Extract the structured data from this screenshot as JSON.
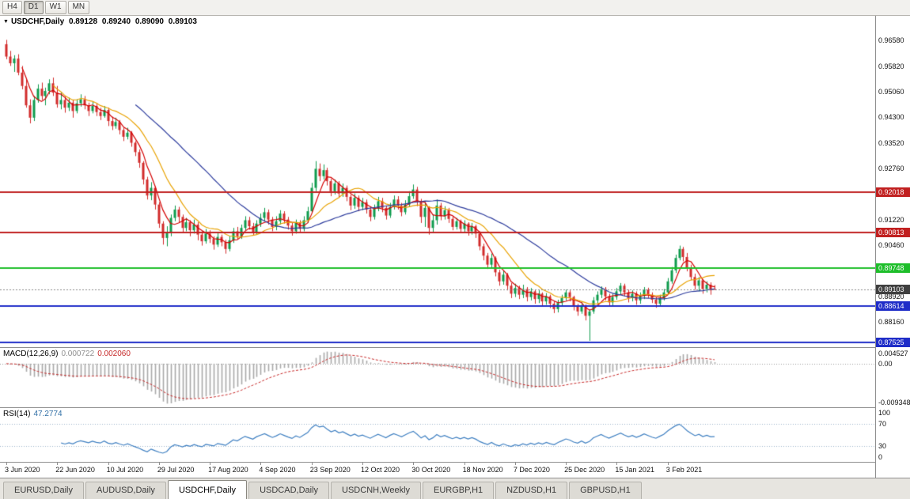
{
  "toolbar": {
    "timeframes": [
      "H4",
      "D1",
      "W1",
      "MN"
    ],
    "active_timeframe": "D1"
  },
  "chart": {
    "title": {
      "symbol": "USDCHF,Daily",
      "open": "0.89128",
      "high": "0.89240",
      "low": "0.89090",
      "close": "0.89103"
    },
    "price_axis": {
      "min": 0.8738,
      "max": 0.973,
      "labels": [
        {
          "text": "0.96580",
          "price": 0.9658
        },
        {
          "text": "0.95820",
          "price": 0.9582
        },
        {
          "text": "0.95060",
          "price": 0.9506
        },
        {
          "text": "0.94300",
          "price": 0.943
        },
        {
          "text": "0.93520",
          "price": 0.9352
        },
        {
          "text": "0.92760",
          "price": 0.9276
        },
        {
          "text": "0.91220",
          "price": 0.9122
        },
        {
          "text": "0.90460",
          "price": 0.9046
        },
        {
          "text": "0.88920",
          "price": 0.8892
        },
        {
          "text": "0.88160",
          "price": 0.8816
        }
      ]
    },
    "hlines": [
      {
        "label": "0.92018",
        "price": 0.92018,
        "color": "#C12020",
        "width": 2
      },
      {
        "label": "0.90813",
        "price": 0.90813,
        "color": "#C12020",
        "width": 2
      },
      {
        "label": "0.89748",
        "price": 0.89748,
        "color": "#1DBE2A",
        "width": 2
      },
      {
        "label": "0.88614",
        "price": 0.88614,
        "color": "#1F2DC8",
        "width": 2
      },
      {
        "label": "0.87525",
        "price": 0.87525,
        "color": "#1F2DC8",
        "width": 2
      }
    ],
    "bid": {
      "label": "0.89103",
      "price": 0.89103,
      "badge_color": "#3F3F3F"
    },
    "colors": {
      "background": "#FFFFFF",
      "up": "#0E9B4D",
      "down": "#D22B2B"
    }
  },
  "chart_data": {
    "type": "candlestick",
    "symbol": "USDCHF",
    "timeframe": "Daily",
    "x_labels": [
      {
        "text": "3 Jun 2020",
        "index": 0
      },
      {
        "text": "22 Jun 2020",
        "index": 13
      },
      {
        "text": "10 Jul 2020",
        "index": 26
      },
      {
        "text": "29 Jul 2020",
        "index": 39
      },
      {
        "text": "17 Aug 2020",
        "index": 52
      },
      {
        "text": "4 Sep 2020",
        "index": 65
      },
      {
        "text": "23 Sep 2020",
        "index": 78
      },
      {
        "text": "12 Oct 2020",
        "index": 91
      },
      {
        "text": "30 Oct 2020",
        "index": 104
      },
      {
        "text": "18 Nov 2020",
        "index": 117
      },
      {
        "text": "7 Dec 2020",
        "index": 130
      },
      {
        "text": "25 Dec 2020",
        "index": 143
      },
      {
        "text": "15 Jan 2021",
        "index": 156
      },
      {
        "text": "3 Feb 2021",
        "index": 169
      }
    ],
    "moving_averages": [
      {
        "type": "sma",
        "period": 5,
        "color": "#D40000"
      },
      {
        "type": "sma",
        "period": 13,
        "color": "#E8A200"
      },
      {
        "type": "sma",
        "period": 34,
        "color": "#2B3A9C"
      }
    ],
    "candles": [
      [
        0.9645,
        0.9658,
        0.96,
        0.9608
      ],
      [
        0.9608,
        0.9625,
        0.958,
        0.9588
      ],
      [
        0.9588,
        0.9612,
        0.9562,
        0.9602
      ],
      [
        0.9602,
        0.9615,
        0.9552,
        0.956
      ],
      [
        0.956,
        0.958,
        0.951,
        0.952
      ],
      [
        0.952,
        0.954,
        0.9455,
        0.9462
      ],
      [
        0.9462,
        0.948,
        0.9408,
        0.9425
      ],
      [
        0.9425,
        0.949,
        0.9415,
        0.9478
      ],
      [
        0.9478,
        0.9525,
        0.947,
        0.9512
      ],
      [
        0.9512,
        0.953,
        0.9478,
        0.949
      ],
      [
        0.949,
        0.9515,
        0.9462,
        0.9505
      ],
      [
        0.9505,
        0.954,
        0.9495,
        0.9528
      ],
      [
        0.9528,
        0.9545,
        0.949,
        0.95
      ],
      [
        0.95,
        0.952,
        0.9455,
        0.9465
      ],
      [
        0.9465,
        0.95,
        0.945,
        0.9478
      ],
      [
        0.9478,
        0.9488,
        0.944,
        0.9455
      ],
      [
        0.9455,
        0.9485,
        0.9445,
        0.947
      ],
      [
        0.947,
        0.9478,
        0.9425,
        0.9445
      ],
      [
        0.9445,
        0.948,
        0.9438,
        0.9468
      ],
      [
        0.9468,
        0.9495,
        0.9458,
        0.948
      ],
      [
        0.948,
        0.949,
        0.945,
        0.9462
      ],
      [
        0.9462,
        0.947,
        0.943,
        0.9445
      ],
      [
        0.9445,
        0.9472,
        0.9438,
        0.946
      ],
      [
        0.946,
        0.9468,
        0.943,
        0.9442
      ],
      [
        0.9442,
        0.9455,
        0.9418,
        0.943
      ],
      [
        0.943,
        0.946,
        0.9425,
        0.9448
      ],
      [
        0.9448,
        0.9455,
        0.94,
        0.9415
      ],
      [
        0.9415,
        0.9428,
        0.9388,
        0.94
      ],
      [
        0.94,
        0.9425,
        0.9392,
        0.9412
      ],
      [
        0.9412,
        0.9418,
        0.9375,
        0.9388
      ],
      [
        0.9388,
        0.9395,
        0.9355,
        0.9368
      ],
      [
        0.9368,
        0.9395,
        0.936,
        0.938
      ],
      [
        0.938,
        0.9385,
        0.9338,
        0.935
      ],
      [
        0.935,
        0.9355,
        0.931,
        0.9322
      ],
      [
        0.9322,
        0.933,
        0.9275,
        0.929
      ],
      [
        0.929,
        0.9295,
        0.9225,
        0.924
      ],
      [
        0.924,
        0.9248,
        0.918,
        0.9192
      ],
      [
        0.9192,
        0.9232,
        0.9178,
        0.9215
      ],
      [
        0.9215,
        0.922,
        0.915,
        0.9165
      ],
      [
        0.9165,
        0.9172,
        0.9095,
        0.9108
      ],
      [
        0.9108,
        0.9115,
        0.9045,
        0.9065
      ],
      [
        0.9065,
        0.91,
        0.904,
        0.908
      ],
      [
        0.908,
        0.9135,
        0.907,
        0.9125
      ],
      [
        0.9125,
        0.9162,
        0.9115,
        0.915
      ],
      [
        0.915,
        0.9158,
        0.911,
        0.9128
      ],
      [
        0.9128,
        0.9135,
        0.908,
        0.9095
      ],
      [
        0.9095,
        0.9125,
        0.9085,
        0.9112
      ],
      [
        0.9112,
        0.9118,
        0.907,
        0.9088
      ],
      [
        0.9088,
        0.912,
        0.9078,
        0.9105
      ],
      [
        0.9105,
        0.9112,
        0.9058,
        0.9075
      ],
      [
        0.9075,
        0.9085,
        0.9042,
        0.9055
      ],
      [
        0.9055,
        0.9092,
        0.9048,
        0.9078
      ],
      [
        0.9078,
        0.9088,
        0.905,
        0.9062
      ],
      [
        0.9062,
        0.907,
        0.903,
        0.9045
      ],
      [
        0.9045,
        0.908,
        0.9038,
        0.9068
      ],
      [
        0.9068,
        0.9075,
        0.904,
        0.9052
      ],
      [
        0.9052,
        0.906,
        0.9018,
        0.9032
      ],
      [
        0.9032,
        0.907,
        0.9025,
        0.9058
      ],
      [
        0.9058,
        0.9095,
        0.905,
        0.9085
      ],
      [
        0.9085,
        0.9098,
        0.906,
        0.907
      ],
      [
        0.907,
        0.9105,
        0.9062,
        0.9095
      ],
      [
        0.9095,
        0.913,
        0.9088,
        0.9118
      ],
      [
        0.9118,
        0.9128,
        0.909,
        0.91
      ],
      [
        0.91,
        0.911,
        0.9072,
        0.9082
      ],
      [
        0.9082,
        0.9118,
        0.9075,
        0.9108
      ],
      [
        0.9108,
        0.9138,
        0.9098,
        0.9125
      ],
      [
        0.9125,
        0.9155,
        0.9115,
        0.9142
      ],
      [
        0.9142,
        0.915,
        0.9105,
        0.912
      ],
      [
        0.912,
        0.9128,
        0.9085,
        0.9098
      ],
      [
        0.9098,
        0.913,
        0.9088,
        0.9115
      ],
      [
        0.9115,
        0.9148,
        0.9105,
        0.9138
      ],
      [
        0.9138,
        0.9145,
        0.9108,
        0.912
      ],
      [
        0.912,
        0.9128,
        0.909,
        0.9102
      ],
      [
        0.9102,
        0.911,
        0.9072,
        0.9085
      ],
      [
        0.9085,
        0.912,
        0.9078,
        0.911
      ],
      [
        0.911,
        0.9118,
        0.908,
        0.9092
      ],
      [
        0.9092,
        0.913,
        0.9085,
        0.9118
      ],
      [
        0.9118,
        0.9158,
        0.911,
        0.9145
      ],
      [
        0.9145,
        0.923,
        0.914,
        0.9215
      ],
      [
        0.9215,
        0.9295,
        0.9205,
        0.9272
      ],
      [
        0.9272,
        0.9288,
        0.9235,
        0.925
      ],
      [
        0.925,
        0.9285,
        0.924,
        0.9268
      ],
      [
        0.9268,
        0.9275,
        0.9222,
        0.9235
      ],
      [
        0.9235,
        0.9242,
        0.919,
        0.9205
      ],
      [
        0.9205,
        0.924,
        0.9195,
        0.9228
      ],
      [
        0.9228,
        0.9235,
        0.9185,
        0.9198
      ],
      [
        0.9198,
        0.9228,
        0.9188,
        0.9215
      ],
      [
        0.9215,
        0.9222,
        0.9175,
        0.9188
      ],
      [
        0.9188,
        0.9195,
        0.9148,
        0.9162
      ],
      [
        0.9162,
        0.9198,
        0.9152,
        0.9185
      ],
      [
        0.9185,
        0.9192,
        0.9145,
        0.9158
      ],
      [
        0.9158,
        0.9185,
        0.9148,
        0.9172
      ],
      [
        0.9172,
        0.918,
        0.9138,
        0.915
      ],
      [
        0.915,
        0.9158,
        0.9115,
        0.9128
      ],
      [
        0.9128,
        0.9165,
        0.912,
        0.9152
      ],
      [
        0.9152,
        0.9188,
        0.9145,
        0.9175
      ],
      [
        0.9175,
        0.9185,
        0.9142,
        0.9155
      ],
      [
        0.9155,
        0.9162,
        0.912,
        0.9132
      ],
      [
        0.9132,
        0.917,
        0.9125,
        0.9158
      ],
      [
        0.9158,
        0.9192,
        0.915,
        0.918
      ],
      [
        0.918,
        0.919,
        0.915,
        0.9162
      ],
      [
        0.9162,
        0.917,
        0.913,
        0.9142
      ],
      [
        0.9142,
        0.9178,
        0.9135,
        0.9165
      ],
      [
        0.9165,
        0.9205,
        0.9158,
        0.919
      ],
      [
        0.919,
        0.9225,
        0.9182,
        0.921
      ],
      [
        0.921,
        0.9218,
        0.916,
        0.9175
      ],
      [
        0.9175,
        0.9182,
        0.911,
        0.9128
      ],
      [
        0.9128,
        0.9172,
        0.9098,
        0.9155
      ],
      [
        0.9155,
        0.916,
        0.9075,
        0.9095
      ],
      [
        0.9095,
        0.9135,
        0.9082,
        0.9118
      ],
      [
        0.9118,
        0.918,
        0.9105,
        0.9162
      ],
      [
        0.9162,
        0.917,
        0.9118,
        0.913
      ],
      [
        0.913,
        0.916,
        0.912,
        0.9148
      ],
      [
        0.9148,
        0.9155,
        0.911,
        0.9122
      ],
      [
        0.9122,
        0.913,
        0.9088,
        0.9098
      ],
      [
        0.9098,
        0.9125,
        0.909,
        0.9115
      ],
      [
        0.9115,
        0.912,
        0.908,
        0.9092
      ],
      [
        0.9092,
        0.9118,
        0.9082,
        0.9108
      ],
      [
        0.9108,
        0.9112,
        0.9072,
        0.9085
      ],
      [
        0.9085,
        0.911,
        0.9075,
        0.91
      ],
      [
        0.91,
        0.9105,
        0.9065,
        0.9078
      ],
      [
        0.9078,
        0.9085,
        0.9028,
        0.904
      ],
      [
        0.904,
        0.9048,
        0.8998,
        0.9012
      ],
      [
        0.9012,
        0.902,
        0.8972,
        0.8985
      ],
      [
        0.8985,
        0.9018,
        0.8975,
        0.9005
      ],
      [
        0.9005,
        0.901,
        0.895,
        0.8962
      ],
      [
        0.8962,
        0.897,
        0.8922,
        0.8935
      ],
      [
        0.8935,
        0.8968,
        0.8925,
        0.8955
      ],
      [
        0.8955,
        0.896,
        0.8908,
        0.8922
      ],
      [
        0.8922,
        0.893,
        0.8885,
        0.8898
      ],
      [
        0.8898,
        0.8928,
        0.8888,
        0.8915
      ],
      [
        0.8915,
        0.8922,
        0.8882,
        0.8895
      ],
      [
        0.8895,
        0.8925,
        0.8885,
        0.8912
      ],
      [
        0.8912,
        0.8918,
        0.8875,
        0.8888
      ],
      [
        0.8888,
        0.8915,
        0.8878,
        0.8905
      ],
      [
        0.8905,
        0.891,
        0.8868,
        0.8882
      ],
      [
        0.8882,
        0.8908,
        0.887,
        0.8898
      ],
      [
        0.8898,
        0.8902,
        0.8862,
        0.8875
      ],
      [
        0.8875,
        0.89,
        0.8865,
        0.889
      ],
      [
        0.889,
        0.8895,
        0.8855,
        0.8868
      ],
      [
        0.8868,
        0.8875,
        0.884,
        0.8852
      ],
      [
        0.8852,
        0.888,
        0.8842,
        0.887
      ],
      [
        0.887,
        0.8895,
        0.886,
        0.8885
      ],
      [
        0.8885,
        0.891,
        0.8878,
        0.8902
      ],
      [
        0.8902,
        0.8908,
        0.8875,
        0.8888
      ],
      [
        0.8888,
        0.8892,
        0.8848,
        0.886
      ],
      [
        0.886,
        0.8868,
        0.8832,
        0.8845
      ],
      [
        0.8845,
        0.8872,
        0.8838,
        0.8862
      ],
      [
        0.8862,
        0.8866,
        0.8818,
        0.8832
      ],
      [
        0.8832,
        0.8852,
        0.8757,
        0.8845
      ],
      [
        0.8845,
        0.8888,
        0.8838,
        0.8878
      ],
      [
        0.8878,
        0.8905,
        0.8868,
        0.8895
      ],
      [
        0.8895,
        0.892,
        0.8885,
        0.8912
      ],
      [
        0.8912,
        0.8918,
        0.8878,
        0.889
      ],
      [
        0.889,
        0.8898,
        0.886,
        0.8872
      ],
      [
        0.8872,
        0.8898,
        0.8862,
        0.8888
      ],
      [
        0.8888,
        0.8915,
        0.888,
        0.8905
      ],
      [
        0.8905,
        0.893,
        0.8895,
        0.8922
      ],
      [
        0.8922,
        0.8928,
        0.889,
        0.8902
      ],
      [
        0.8902,
        0.891,
        0.8872,
        0.8885
      ],
      [
        0.8885,
        0.8908,
        0.8875,
        0.8898
      ],
      [
        0.8898,
        0.8905,
        0.8865,
        0.8878
      ],
      [
        0.8878,
        0.8902,
        0.8868,
        0.8892
      ],
      [
        0.8892,
        0.8918,
        0.8882,
        0.891
      ],
      [
        0.891,
        0.8916,
        0.8885,
        0.8895
      ],
      [
        0.8895,
        0.8902,
        0.887,
        0.888
      ],
      [
        0.888,
        0.8888,
        0.8856,
        0.8868
      ],
      [
        0.8868,
        0.8895,
        0.886,
        0.8885
      ],
      [
        0.8885,
        0.8912,
        0.8878,
        0.8902
      ],
      [
        0.8902,
        0.8945,
        0.8898,
        0.8935
      ],
      [
        0.8935,
        0.8978,
        0.8928,
        0.8968
      ],
      [
        0.8968,
        0.9015,
        0.896,
        0.9005
      ],
      [
        0.9005,
        0.9042,
        0.8998,
        0.9032
      ],
      [
        0.9032,
        0.9038,
        0.8995,
        0.9008
      ],
      [
        0.9008,
        0.902,
        0.8965,
        0.8975
      ],
      [
        0.8975,
        0.8985,
        0.8938,
        0.8948
      ],
      [
        0.8948,
        0.8958,
        0.891,
        0.8922
      ],
      [
        0.8922,
        0.8948,
        0.8905,
        0.8938
      ],
      [
        0.8938,
        0.8942,
        0.8898,
        0.8912
      ],
      [
        0.8912,
        0.8935,
        0.8902,
        0.8925
      ],
      [
        0.8925,
        0.8932,
        0.8895,
        0.8908
      ],
      [
        0.89128,
        0.8924,
        0.8909,
        0.89103
      ]
    ]
  },
  "indicators": {
    "macd": {
      "name": "MACD(12,26,9)",
      "value_main": "0.000722",
      "value_signal": "0.002060",
      "fast": 12,
      "slow": 26,
      "signal": 9,
      "axis_top": "0.004527",
      "axis_zero": "0.00",
      "axis_bottom": "-0.009348",
      "histogram_color": "#A9A9A9",
      "signal_color": "#C62828"
    },
    "rsi": {
      "name": "RSI(14)",
      "value": "47.2774",
      "period": 14,
      "levels": [
        70,
        30
      ],
      "axis_labels": [
        "100",
        "70",
        "30",
        "0"
      ],
      "line_color": "#3E7FC1"
    }
  },
  "tabs": {
    "active_index": 2,
    "items": [
      "EURUSD,Daily",
      "AUDUSD,Daily",
      "USDCHF,Daily",
      "USDCAD,Daily",
      "USDCNH,Weekly",
      "EURGBP,H1",
      "NZDUSD,H1",
      "GBPUSD,H1"
    ]
  }
}
